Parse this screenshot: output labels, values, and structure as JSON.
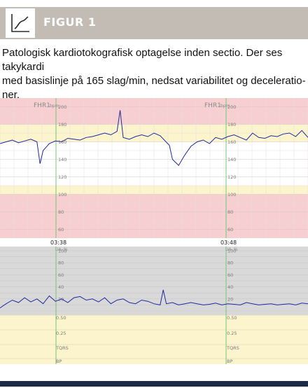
{
  "figure": {
    "label": "FIGUR 1",
    "caption_lines": [
      "Patologisk kardiotokografisk optagelse inden sectio. Der ses takykardi",
      "med basislinje på 165 slag/min, nedsat variabilitet og decelera­tio-",
      "ner."
    ],
    "icon": "line-chart-icon"
  },
  "chart_data": [
    {
      "type": "line",
      "channel": "FHR1",
      "unit": "bpm",
      "yticks": [
        200,
        180,
        160,
        140,
        120,
        100,
        80,
        60
      ],
      "ylim": [
        50,
        210
      ],
      "time_labels": [
        "03:38",
        "03:48"
      ],
      "grid": true,
      "colors": {
        "line": "#1f2a9e",
        "band_red": "#f7cfd0",
        "band_yellow": "#fbf4cc",
        "minute_line": "#78c478"
      },
      "x": [
        0,
        2,
        4,
        6,
        8,
        10,
        12,
        13,
        14,
        16,
        18,
        20,
        22,
        24,
        26,
        28,
        30,
        32,
        34,
        36,
        38,
        39,
        40,
        42,
        44,
        46,
        48,
        50,
        52,
        55,
        56,
        58,
        60,
        62,
        64,
        66,
        68,
        70,
        72,
        74,
        76,
        78,
        80,
        82,
        84,
        86,
        88,
        90,
        92,
        94,
        96,
        98,
        100
      ],
      "values": [
        158,
        160,
        162,
        159,
        161,
        163,
        160,
        135,
        150,
        158,
        161,
        160,
        164,
        163,
        162,
        165,
        166,
        168,
        170,
        168,
        172,
        196,
        165,
        163,
        166,
        168,
        166,
        170,
        167,
        156,
        140,
        133,
        145,
        155,
        160,
        162,
        158,
        165,
        163,
        166,
        168,
        165,
        162,
        170,
        165,
        164,
        167,
        166,
        169,
        170,
        166,
        173,
        165
      ]
    },
    {
      "type": "line",
      "channel": "UA",
      "unit": "%",
      "yticks": [
        100,
        80,
        60,
        40,
        20
      ],
      "ylim": [
        0,
        100
      ],
      "secondary_labels": [
        "0.50",
        "0.25",
        "TQRS",
        "BP"
      ],
      "grid": true,
      "colors": {
        "line": "#1f2a9e",
        "band_gray": "#d9d9d9",
        "band_yellow": "#fbf4cc"
      },
      "x": [
        0,
        2,
        4,
        6,
        8,
        10,
        12,
        14,
        16,
        18,
        20,
        22,
        24,
        26,
        28,
        30,
        32,
        34,
        36,
        38,
        40,
        42,
        44,
        46,
        48,
        50,
        52,
        53,
        54,
        56,
        58,
        60,
        62,
        64,
        66,
        68,
        70,
        72,
        74,
        76,
        78,
        80,
        82,
        84,
        86,
        88,
        90,
        92,
        94,
        96,
        98,
        100
      ],
      "values": [
        5,
        12,
        18,
        14,
        22,
        15,
        20,
        12,
        25,
        16,
        20,
        14,
        22,
        24,
        18,
        20,
        15,
        22,
        12,
        18,
        20,
        14,
        12,
        18,
        16,
        12,
        10,
        35,
        12,
        14,
        10,
        12,
        14,
        12,
        10,
        11,
        13,
        10,
        12,
        11,
        10,
        14,
        12,
        10,
        11,
        12,
        10,
        11,
        12,
        10,
        13,
        12
      ]
    }
  ]
}
